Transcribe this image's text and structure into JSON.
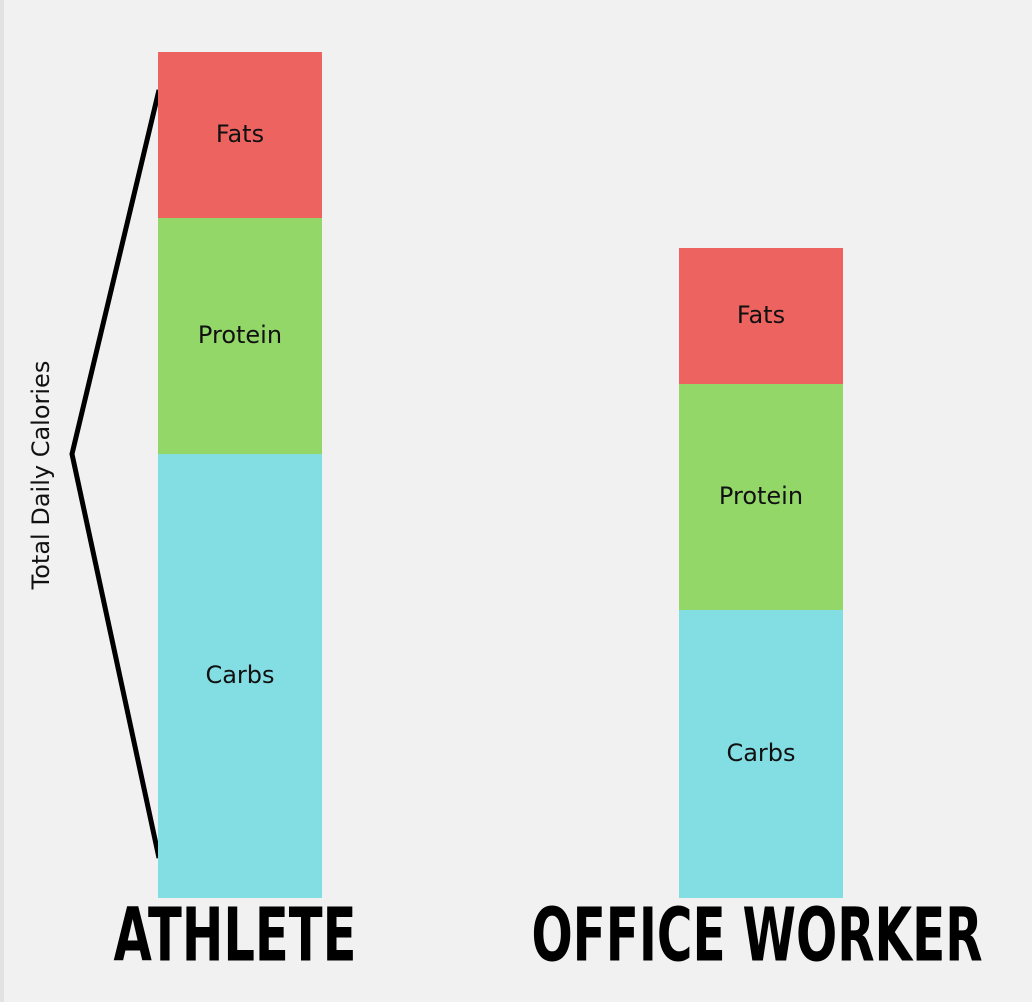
{
  "chart_data": {
    "type": "stacked-bar",
    "y_label": "Total Daily Calories",
    "categories": [
      "ATHLETE",
      "OFFICE WORKER"
    ],
    "series": [
      {
        "name": "Carbs",
        "color": "#83dee4",
        "values": [
          444,
          288
        ]
      },
      {
        "name": "Protein",
        "color": "#94d769",
        "values": [
          236,
          226
        ]
      },
      {
        "name": "Fats",
        "color": "#ec635f",
        "values": [
          166,
          136
        ]
      }
    ]
  }
}
